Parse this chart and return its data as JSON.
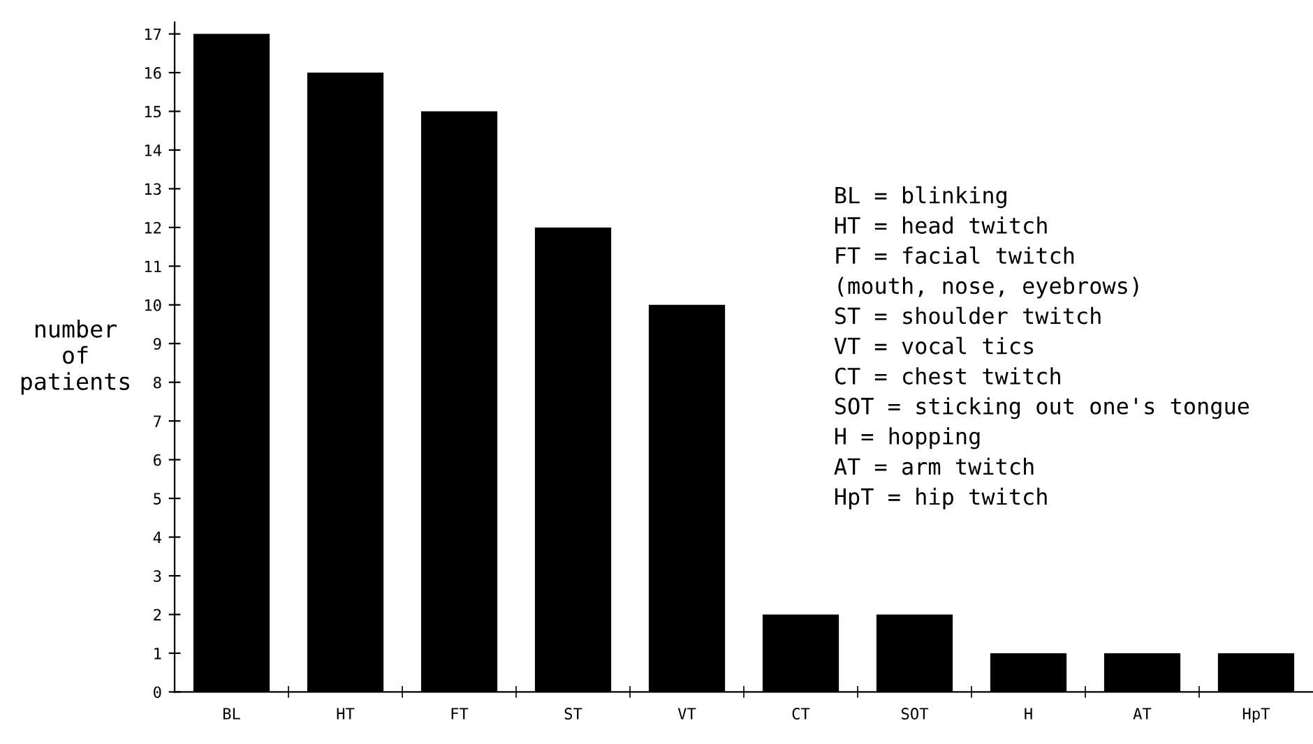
{
  "chart_data": {
    "type": "bar",
    "ylabel": "number\nof\npatients",
    "categories": [
      "BL",
      "HT",
      "FT",
      "ST",
      "VT",
      "CT",
      "SOT",
      "H",
      "AT",
      "HpT"
    ],
    "values": [
      17,
      16,
      15,
      12,
      10,
      2,
      2,
      1,
      1,
      1
    ],
    "color": "#000000",
    "ylim": [
      0,
      17.3
    ],
    "yticks": [
      0,
      1,
      2,
      3,
      4,
      5,
      6,
      7,
      8,
      9,
      10,
      11,
      12,
      13,
      14,
      15,
      16,
      17
    ],
    "grid": false,
    "legend": false,
    "annotations": [
      "BL = blinking",
      "HT = head twitch",
      "FT = facial twitch",
      "(mouth, nose, eyebrows)",
      "ST = shoulder twitch",
      "VT = vocal tics",
      "CT = chest twitch",
      "SOT = sticking out one's tongue",
      "H = hopping",
      "AT = arm twitch",
      "HpT = hip twitch"
    ]
  }
}
